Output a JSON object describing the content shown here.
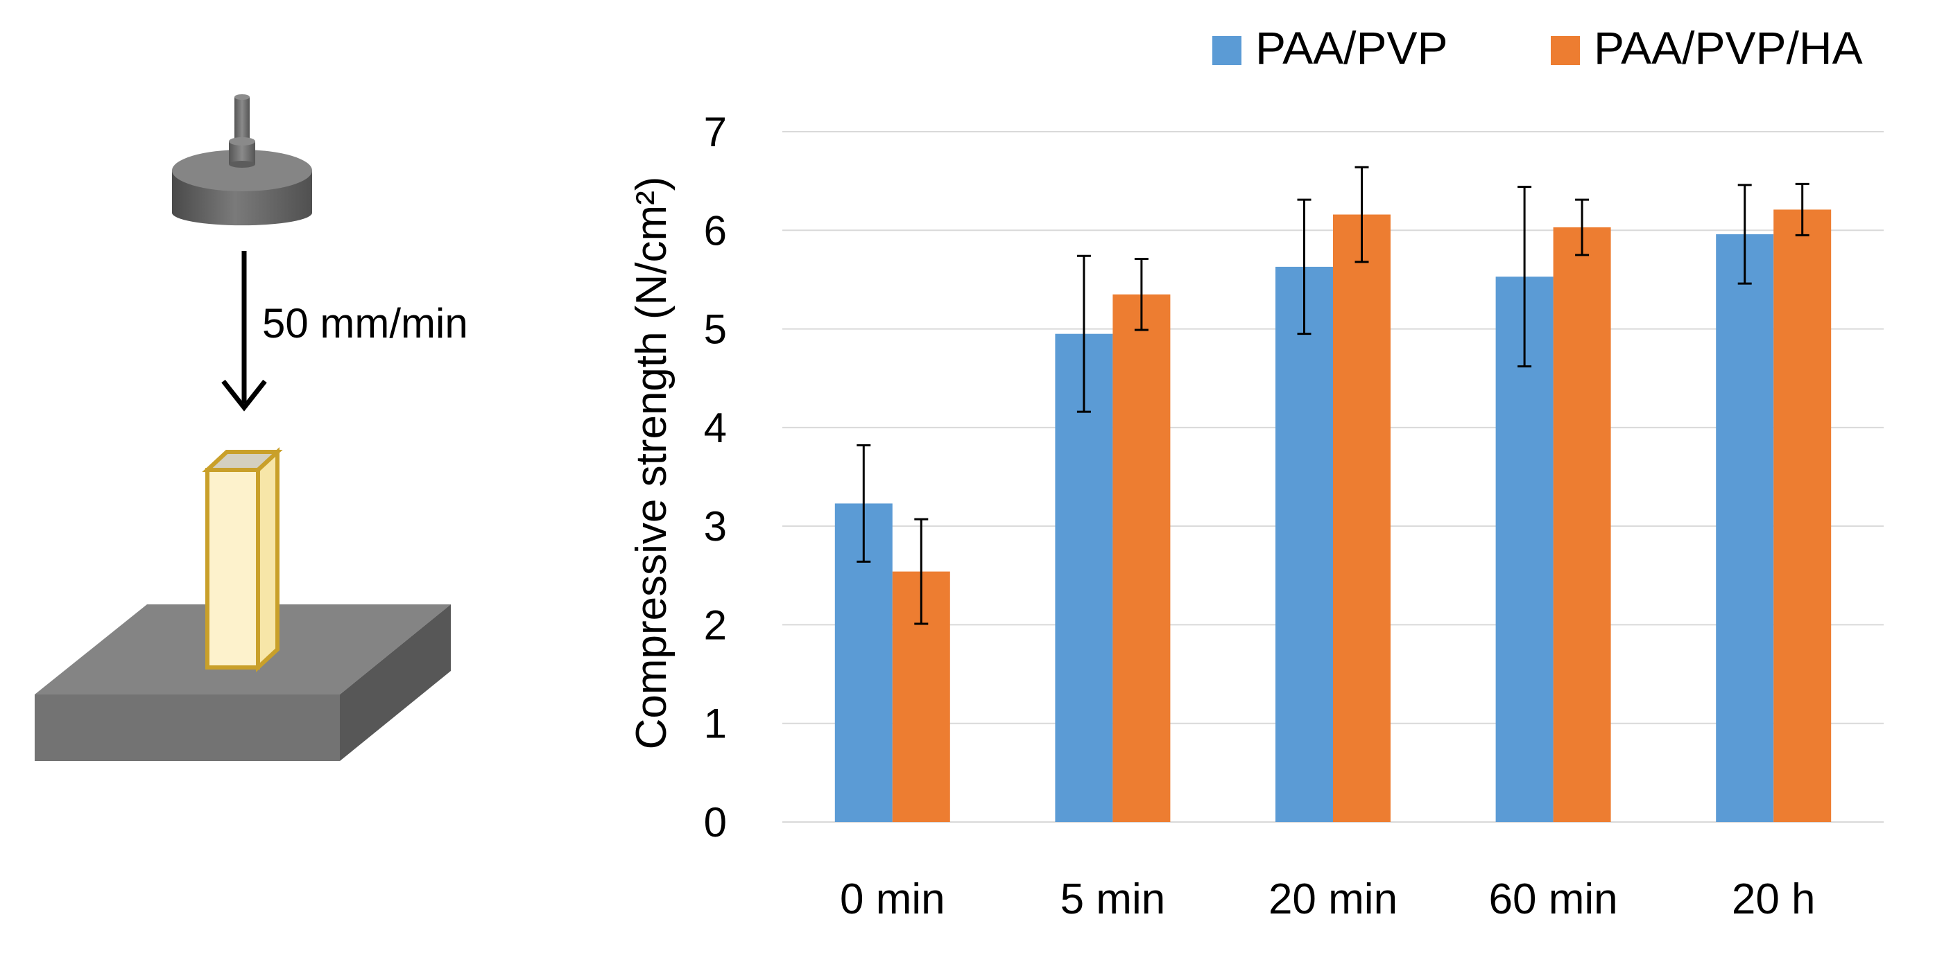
{
  "colors": {
    "series1": "#5b9bd5",
    "series2": "#ed7d31",
    "grid": "#d9d9d9",
    "errorbar": "#000000"
  },
  "schematic": {
    "speed_label": "50 mm/min",
    "icons": [
      "compression-plate-icon",
      "down-arrow-icon",
      "specimen-block-icon",
      "base-platform-icon"
    ]
  },
  "chart_data": {
    "type": "bar",
    "ylabel": "Compressive strength (N/cm²)",
    "xlabel": "",
    "ylim": [
      0,
      7
    ],
    "yticks": [
      0,
      1,
      2,
      3,
      4,
      5,
      6,
      7
    ],
    "grid": true,
    "legend_position": "top",
    "categories": [
      "0 min",
      "5 min",
      "20 min",
      "60 min",
      "20 h"
    ],
    "series": [
      {
        "name": "PAA/PVP",
        "color": "#5b9bd5",
        "values": [
          3.23,
          4.95,
          5.63,
          5.53,
          5.96
        ],
        "errors": [
          0.59,
          0.79,
          0.68,
          0.91,
          0.5
        ]
      },
      {
        "name": "PAA/PVP/HA",
        "color": "#ed7d31",
        "values": [
          2.54,
          5.35,
          6.16,
          6.03,
          6.21
        ],
        "errors": [
          0.53,
          0.36,
          0.48,
          0.28,
          0.26
        ]
      }
    ]
  }
}
